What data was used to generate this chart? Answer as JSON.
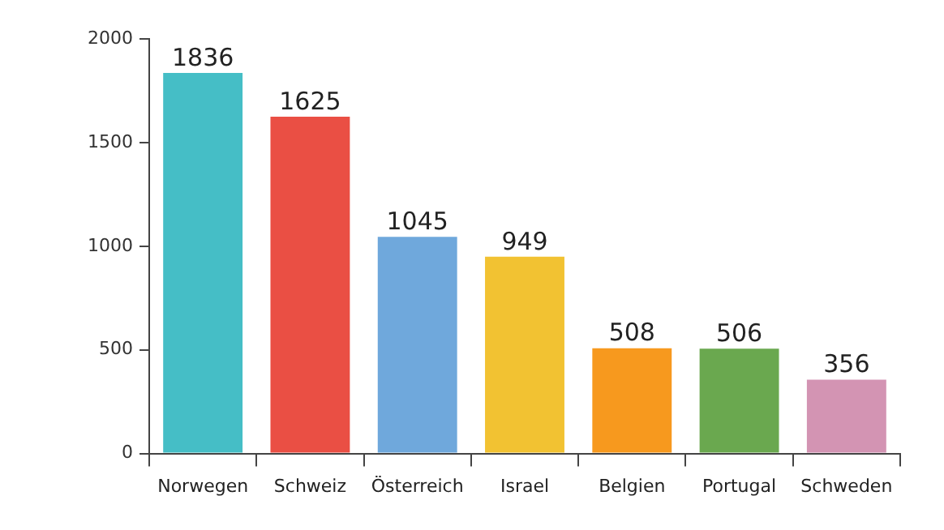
{
  "chart_data": {
    "type": "bar",
    "categories": [
      "Norwegen",
      "Schweiz",
      "Österreich",
      "Israel",
      "Belgien",
      "Portugal",
      "Schweden"
    ],
    "values": [
      1836,
      1625,
      1045,
      949,
      508,
      506,
      356
    ],
    "colors": [
      "#45bec6",
      "#ea4f44",
      "#6fa8dc",
      "#f2c232",
      "#f7991e",
      "#6aa84f",
      "#d394b3"
    ],
    "ylim": [
      0,
      2000
    ],
    "yticks": [
      0,
      500,
      1000,
      1500,
      2000
    ],
    "data_labels": true,
    "grid": false,
    "legend": false
  }
}
